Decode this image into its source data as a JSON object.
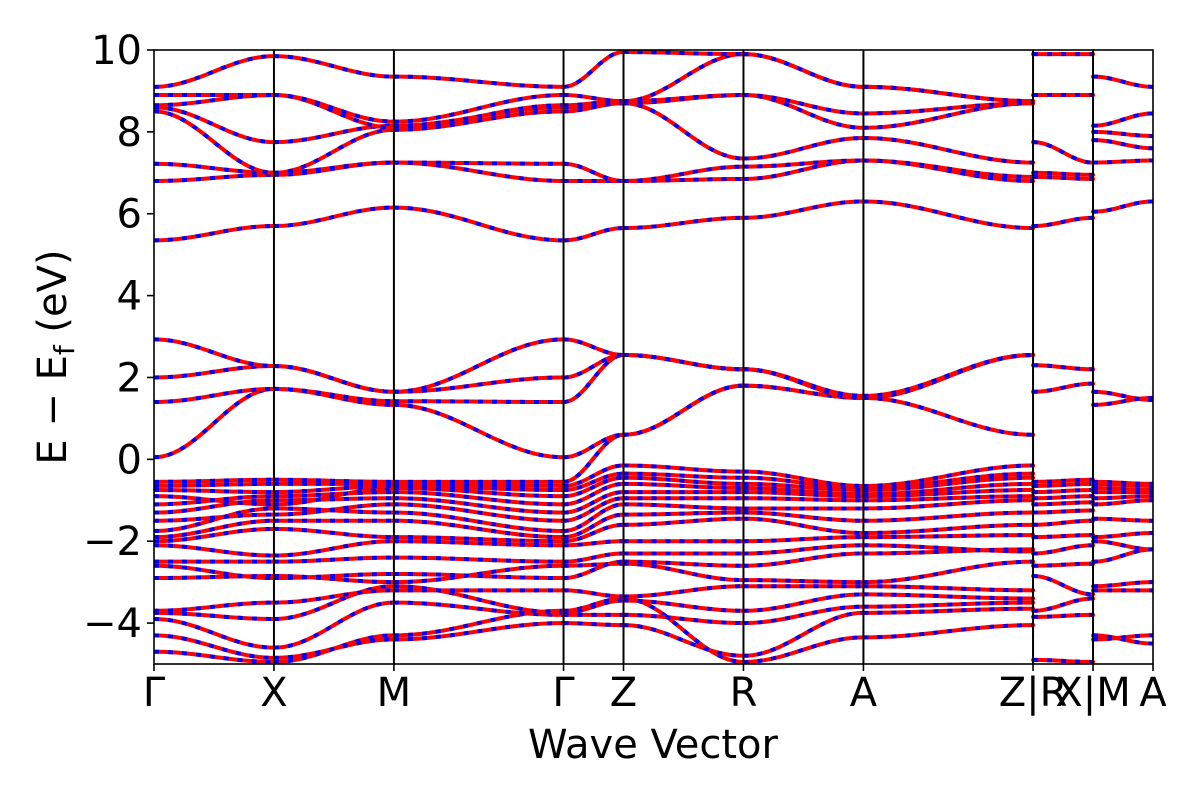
{
  "chart_data": {
    "type": "line",
    "title": "",
    "xlabel": "Wave Vector",
    "ylabel_main": "E − E",
    "ylabel_sub": "f",
    "ylabel_unit": " (eV)",
    "ylim": [
      -5,
      10
    ],
    "yticks": [
      -4,
      -2,
      0,
      2,
      4,
      6,
      8,
      10
    ],
    "ytick_labels": [
      "−4",
      "−2",
      "0",
      "2",
      "4",
      "6",
      "8",
      "10"
    ],
    "high_symbol_points": [
      {
        "label": "Γ",
        "x": 0.0
      },
      {
        "label": "X",
        "x": 1.0
      },
      {
        "label": "M",
        "x": 2.0
      },
      {
        "label": "Γ",
        "x": 3.414
      },
      {
        "label": "Z",
        "x": 3.914
      },
      {
        "label": "R",
        "x": 4.914
      },
      {
        "label": "A",
        "x": 5.914
      },
      {
        "label": "Z|R",
        "x": 7.328
      },
      {
        "label": "X|M",
        "x": 7.828
      },
      {
        "label": "A",
        "x": 8.328
      }
    ],
    "grid": false,
    "legend": "none",
    "colors": {
      "band_line": "#ff0000",
      "band_dash": "#0000ff",
      "kpath_line": "#000000",
      "axes": "#000000"
    },
    "segments": [
      {
        "from": "Γ",
        "to": "X",
        "x": [
          0.0,
          1.0
        ],
        "bands": [
          [
            -4.7,
            -4.95
          ],
          [
            -4.3,
            -4.85
          ],
          [
            -3.9,
            -4.6
          ],
          [
            -3.75,
            -3.9
          ],
          [
            -3.7,
            -3.5
          ],
          [
            -2.9,
            -2.85
          ],
          [
            -2.6,
            -2.9
          ],
          [
            -2.5,
            -2.5
          ],
          [
            -2.1,
            -2.35
          ],
          [
            -2.0,
            -1.7
          ],
          [
            -1.9,
            -1.5
          ],
          [
            -1.75,
            -1.2
          ],
          [
            -1.5,
            -1.35
          ],
          [
            -1.3,
            -1.0
          ],
          [
            -1.1,
            -0.9
          ],
          [
            -0.9,
            -1.1
          ],
          [
            -0.75,
            -0.8
          ],
          [
            -0.65,
            -0.6
          ],
          [
            -0.55,
            -0.5
          ],
          [
            0.05,
            1.72
          ],
          [
            1.4,
            1.72
          ],
          [
            2.0,
            2.28
          ],
          [
            2.93,
            2.28
          ],
          [
            5.35,
            5.7
          ],
          [
            6.8,
            6.95
          ],
          [
            7.22,
            7.0
          ],
          [
            8.5,
            7.0
          ],
          [
            8.6,
            7.75
          ],
          [
            8.65,
            8.9
          ],
          [
            8.9,
            8.9
          ],
          [
            9.1,
            9.85
          ]
        ]
      },
      {
        "from": "X",
        "to": "M",
        "x": [
          1.0,
          2.0
        ],
        "bands": [
          [
            -4.95,
            -4.3
          ],
          [
            -4.85,
            -4.4
          ],
          [
            -4.6,
            -3.5
          ],
          [
            -3.9,
            -3.1
          ],
          [
            -3.5,
            -3.2
          ],
          [
            -2.85,
            -3.0
          ],
          [
            -2.9,
            -2.8
          ],
          [
            -2.5,
            -2.4
          ],
          [
            -2.35,
            -2.0
          ],
          [
            -1.7,
            -1.9
          ],
          [
            -1.5,
            -1.5
          ],
          [
            -1.2,
            -1.3
          ],
          [
            -1.35,
            -1.1
          ],
          [
            -1.0,
            -0.95
          ],
          [
            -0.9,
            -0.8
          ],
          [
            -1.1,
            -0.7
          ],
          [
            -0.8,
            -0.65
          ],
          [
            -0.6,
            -0.6
          ],
          [
            -0.5,
            -0.55
          ],
          [
            1.72,
            1.33
          ],
          [
            1.72,
            1.42
          ],
          [
            2.28,
            1.65
          ],
          [
            2.28,
            1.65
          ],
          [
            5.7,
            6.15
          ],
          [
            6.95,
            7.25
          ],
          [
            7.0,
            7.25
          ],
          [
            7.0,
            8.05
          ],
          [
            7.75,
            8.15
          ],
          [
            8.9,
            8.1
          ],
          [
            8.9,
            8.25
          ],
          [
            9.85,
            9.35
          ]
        ]
      },
      {
        "from": "M",
        "to": "Γ",
        "x": [
          2.0,
          3.414
        ],
        "bands": [
          [
            -4.3,
            -3.7
          ],
          [
            -4.4,
            -4.0
          ],
          [
            -3.5,
            -3.8
          ],
          [
            -3.1,
            -3.75
          ],
          [
            -3.2,
            -3.2
          ],
          [
            -3.0,
            -2.6
          ],
          [
            -2.8,
            -2.9
          ],
          [
            -2.4,
            -2.5
          ],
          [
            -2.0,
            -2.1
          ],
          [
            -1.9,
            -2.0
          ],
          [
            -1.5,
            -1.9
          ],
          [
            -1.3,
            -1.75
          ],
          [
            -1.1,
            -1.5
          ],
          [
            -0.95,
            -1.3
          ],
          [
            -0.8,
            -1.1
          ],
          [
            -0.7,
            -0.9
          ],
          [
            -0.65,
            -0.75
          ],
          [
            -0.6,
            -0.65
          ],
          [
            -0.55,
            -0.55
          ],
          [
            1.33,
            0.05
          ],
          [
            1.42,
            1.4
          ],
          [
            1.65,
            2.0
          ],
          [
            1.65,
            2.93
          ],
          [
            6.15,
            5.35
          ],
          [
            7.25,
            6.8
          ],
          [
            7.25,
            7.22
          ],
          [
            8.05,
            8.5
          ],
          [
            8.15,
            8.6
          ],
          [
            8.1,
            8.65
          ],
          [
            8.25,
            8.9
          ],
          [
            9.35,
            9.1
          ]
        ]
      },
      {
        "from": "Γ",
        "to": "Z",
        "x": [
          3.414,
          3.914
        ],
        "bands": [
          [
            -3.7,
            -3.4
          ],
          [
            -4.0,
            -4.05
          ],
          [
            -3.8,
            -3.8
          ],
          [
            -3.75,
            -3.45
          ],
          [
            -3.2,
            -3.35
          ],
          [
            -2.6,
            -2.55
          ],
          [
            -2.9,
            -2.5
          ],
          [
            -2.5,
            -2.3
          ],
          [
            -2.1,
            -2.0
          ],
          [
            -2.0,
            -1.6
          ],
          [
            -1.9,
            -1.35
          ],
          [
            -1.75,
            -1.1
          ],
          [
            -1.5,
            -0.95
          ],
          [
            -1.3,
            -0.8
          ],
          [
            -1.1,
            -0.6
          ],
          [
            -0.9,
            -0.45
          ],
          [
            -0.75,
            -0.35
          ],
          [
            -0.65,
            -0.15
          ],
          [
            -0.55,
            0.6
          ],
          [
            0.05,
            0.6
          ],
          [
            1.4,
            2.55
          ],
          [
            2.0,
            2.55
          ],
          [
            2.93,
            2.55
          ],
          [
            5.35,
            5.65
          ],
          [
            6.8,
            6.8
          ],
          [
            7.22,
            6.8
          ],
          [
            8.5,
            8.7
          ],
          [
            8.6,
            8.7
          ],
          [
            8.65,
            8.75
          ],
          [
            8.9,
            8.75
          ],
          [
            9.1,
            9.95
          ]
        ]
      },
      {
        "from": "Z",
        "to": "R",
        "x": [
          3.914,
          4.914
        ],
        "bands": [
          [
            -3.4,
            -4.95
          ],
          [
            -4.05,
            -4.8
          ],
          [
            -3.8,
            -4.0
          ],
          [
            -3.45,
            -3.7
          ],
          [
            -3.35,
            -3.1
          ],
          [
            -2.55,
            -2.95
          ],
          [
            -2.5,
            -2.6
          ],
          [
            -2.3,
            -2.3
          ],
          [
            -2.0,
            -2.0
          ],
          [
            -1.6,
            -1.45
          ],
          [
            -1.35,
            -1.3
          ],
          [
            -1.1,
            -1.2
          ],
          [
            -0.95,
            -0.95
          ],
          [
            -0.8,
            -0.8
          ],
          [
            -0.6,
            -0.7
          ],
          [
            -0.45,
            -0.6
          ],
          [
            -0.35,
            -0.45
          ],
          [
            -0.15,
            -0.3
          ],
          [
            0.6,
            1.8
          ],
          [
            0.6,
            1.8
          ],
          [
            2.55,
            2.2
          ],
          [
            2.55,
            2.2
          ],
          [
            2.55,
            2.2
          ],
          [
            5.65,
            5.9
          ],
          [
            6.8,
            6.85
          ],
          [
            6.8,
            7.15
          ],
          [
            8.7,
            7.35
          ],
          [
            8.7,
            8.9
          ],
          [
            8.75,
            8.9
          ],
          [
            8.75,
            9.9
          ],
          [
            9.95,
            9.9
          ]
        ]
      },
      {
        "from": "R",
        "to": "A",
        "x": [
          4.914,
          5.914
        ],
        "bands": [
          [
            -4.95,
            -4.35
          ],
          [
            -4.8,
            -3.75
          ],
          [
            -4.0,
            -3.6
          ],
          [
            -3.7,
            -3.3
          ],
          [
            -3.1,
            -3.1
          ],
          [
            -2.95,
            -3.0
          ],
          [
            -2.6,
            -2.3
          ],
          [
            -2.3,
            -2.1
          ],
          [
            -2.0,
            -1.9
          ],
          [
            -1.45,
            -1.8
          ],
          [
            -1.3,
            -1.5
          ],
          [
            -1.2,
            -1.2
          ],
          [
            -0.95,
            -1.0
          ],
          [
            -0.8,
            -0.9
          ],
          [
            -0.7,
            -0.85
          ],
          [
            -0.6,
            -0.75
          ],
          [
            -0.45,
            -0.7
          ],
          [
            -0.3,
            -0.65
          ],
          [
            1.8,
            1.5
          ],
          [
            1.8,
            1.5
          ],
          [
            2.2,
            1.5
          ],
          [
            2.2,
            1.5
          ],
          [
            2.2,
            1.55
          ],
          [
            5.9,
            6.3
          ],
          [
            6.85,
            7.3
          ],
          [
            7.15,
            7.3
          ],
          [
            7.35,
            7.85
          ],
          [
            8.9,
            8.1
          ],
          [
            8.9,
            8.45
          ],
          [
            9.9,
            9.1
          ],
          [
            9.9,
            9.1
          ]
        ]
      },
      {
        "from": "A",
        "to": "Z",
        "x": [
          5.914,
          7.328
        ],
        "bands": [
          [
            -4.35,
            -4.05
          ],
          [
            -3.75,
            -3.65
          ],
          [
            -3.6,
            -3.5
          ],
          [
            -3.3,
            -3.4
          ],
          [
            -3.1,
            -3.2
          ],
          [
            -3.0,
            -2.5
          ],
          [
            -2.3,
            -2.2
          ],
          [
            -2.1,
            -2.25
          ],
          [
            -1.9,
            -1.85
          ],
          [
            -1.8,
            -1.6
          ],
          [
            -1.5,
            -1.3
          ],
          [
            -1.2,
            -1.0
          ],
          [
            -1.0,
            -0.9
          ],
          [
            -0.9,
            -0.75
          ],
          [
            -0.85,
            -0.6
          ],
          [
            -0.75,
            -0.45
          ],
          [
            -0.7,
            -0.35
          ],
          [
            -0.65,
            -0.15
          ],
          [
            1.5,
            0.6
          ],
          [
            1.5,
            2.55
          ],
          [
            1.5,
            2.55
          ],
          [
            1.5,
            2.55
          ],
          [
            1.55,
            2.55
          ],
          [
            6.3,
            5.65
          ],
          [
            7.3,
            6.8
          ],
          [
            7.3,
            6.9
          ],
          [
            7.85,
            7.25
          ],
          [
            8.1,
            8.7
          ],
          [
            8.45,
            8.7
          ],
          [
            9.1,
            8.75
          ],
          [
            9.1,
            8.75
          ]
        ]
      },
      {
        "from": "R",
        "to": "X",
        "x": [
          7.328,
          7.828
        ],
        "bands": [
          [
            -4.9,
            -4.95
          ],
          [
            -3.85,
            -3.8
          ],
          [
            -3.7,
            -3.4
          ],
          [
            -2.85,
            -3.3
          ],
          [
            -2.6,
            -2.55
          ],
          [
            -2.3,
            -2.1
          ],
          [
            -1.9,
            -1.85
          ],
          [
            -1.6,
            -1.5
          ],
          [
            -1.3,
            -1.25
          ],
          [
            -1.1,
            -1.05
          ],
          [
            -0.95,
            -0.9
          ],
          [
            -0.8,
            -0.75
          ],
          [
            -0.65,
            -0.6
          ],
          [
            -0.55,
            -0.5
          ],
          [
            1.65,
            1.85
          ],
          [
            2.3,
            2.2
          ],
          [
            5.7,
            5.9
          ],
          [
            6.9,
            6.85
          ],
          [
            7.0,
            6.95
          ],
          [
            7.75,
            7.25
          ],
          [
            8.9,
            8.9
          ],
          [
            9.9,
            9.9
          ]
        ]
      },
      {
        "from": "M",
        "to": "A",
        "x": [
          7.828,
          8.328
        ],
        "bands": [
          [
            -4.3,
            -4.5
          ],
          [
            -4.4,
            -4.3
          ],
          [
            -3.1,
            -3.0
          ],
          [
            -3.2,
            -3.2
          ],
          [
            -2.5,
            -2.2
          ],
          [
            -2.0,
            -2.2
          ],
          [
            -1.9,
            -1.8
          ],
          [
            -1.45,
            -1.5
          ],
          [
            -1.1,
            -1.0
          ],
          [
            -0.95,
            -0.9
          ],
          [
            -0.8,
            -0.8
          ],
          [
            -0.7,
            -0.75
          ],
          [
            -0.6,
            -0.65
          ],
          [
            -0.55,
            -0.6
          ],
          [
            1.33,
            1.5
          ],
          [
            1.65,
            1.45
          ],
          [
            6.05,
            6.3
          ],
          [
            7.25,
            7.3
          ],
          [
            7.8,
            7.6
          ],
          [
            8.0,
            7.9
          ],
          [
            8.15,
            8.45
          ],
          [
            9.35,
            9.1
          ]
        ]
      }
    ]
  }
}
